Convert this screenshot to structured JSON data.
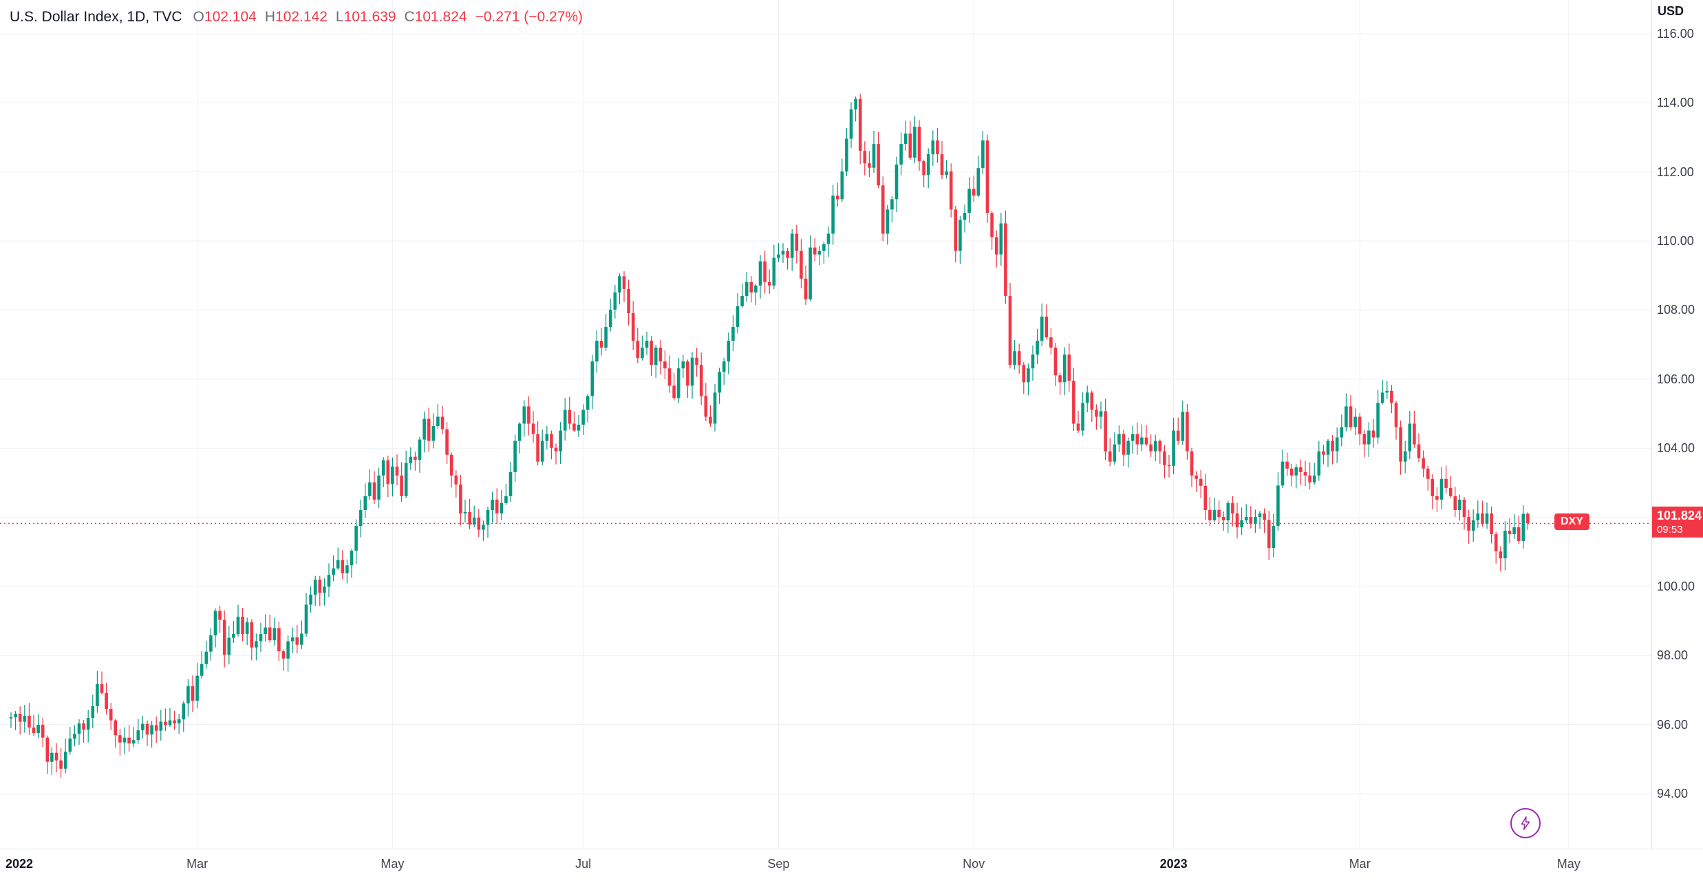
{
  "legend": {
    "title": "U.S. Dollar Index, 1D, TVC",
    "ohlc": [
      {
        "label": "O",
        "value": "102.104"
      },
      {
        "label": "H",
        "value": "102.142"
      },
      {
        "label": "L",
        "value": "101.639"
      },
      {
        "label": "C",
        "value": "101.824"
      }
    ],
    "change": "−0.271 (−0.27%)"
  },
  "price_axis": {
    "currency_label": "USD",
    "ticks": [
      "116.00",
      "114.00",
      "112.00",
      "110.00",
      "108.00",
      "106.00",
      "104.00",
      "102.00",
      "100.00",
      "98.00",
      "96.00",
      "94.00"
    ],
    "price_tag": {
      "price": "101.824",
      "countdown": "09:53"
    }
  },
  "series_tag": {
    "label": "DXY"
  },
  "time_axis": {
    "labels": [
      {
        "index": 0,
        "label": "2022",
        "bold": true,
        "grid": false
      },
      {
        "index": 41,
        "label": "Mar"
      },
      {
        "index": 84,
        "label": "May"
      },
      {
        "index": 126,
        "label": "Jul"
      },
      {
        "index": 169,
        "label": "Sep"
      },
      {
        "index": 212,
        "label": "Nov"
      },
      {
        "index": 256,
        "label": "2023",
        "bold": true
      },
      {
        "index": 297,
        "label": "Mar"
      },
      {
        "index": 343,
        "label": "May"
      }
    ]
  },
  "colors": {
    "up": "#089981",
    "down": "#f23645",
    "grid": "#eef0f4",
    "axis_line": "#e0e3eb",
    "text_primary": "#131722",
    "accent_purple": "#9c27b0"
  },
  "chart_data": {
    "type": "candlestick",
    "title": "U.S. Dollar Index",
    "symbol": "DXY",
    "interval": "1D",
    "exchange": "TVC",
    "ylabel": "USD",
    "ylim": [
      93.3,
      116.4
    ],
    "x_axis_labels": [
      "2022",
      "Mar",
      "May",
      "Jul",
      "Sep",
      "Nov",
      "2023",
      "Mar",
      "May"
    ],
    "grid": true,
    "current_price": 101.824,
    "last_ohlc": {
      "open": 102.104,
      "high": 102.142,
      "low": 101.639,
      "close": 101.824
    },
    "closes": [
      96.21,
      96.31,
      96.08,
      96.25,
      95.91,
      95.75,
      95.99,
      95.62,
      94.92,
      95.18,
      94.96,
      94.72,
      95.21,
      95.59,
      95.73,
      96.03,
      95.85,
      96.19,
      96.53,
      97.17,
      96.91,
      96.45,
      96.12,
      95.69,
      95.48,
      95.62,
      95.45,
      95.55,
      95.83,
      96.02,
      95.71,
      95.98,
      95.82,
      96.08,
      95.98,
      96.12,
      96.03,
      96.15,
      96.61,
      97.11,
      96.69,
      97.41,
      97.75,
      98.11,
      98.58,
      99.29,
      99.03,
      98.01,
      98.51,
      98.62,
      99.12,
      98.62,
      98.96,
      98.23,
      98.41,
      98.62,
      98.81,
      98.44,
      98.79,
      98.12,
      97.91,
      98.41,
      98.52,
      98.31,
      98.63,
      99.47,
      99.76,
      100.19,
      99.81,
      99.99,
      100.33,
      100.52,
      100.76,
      100.38,
      100.61,
      101.03,
      101.75,
      102.21,
      102.61,
      103.01,
      102.51,
      103.21,
      103.65,
      102.96,
      103.47,
      103.21,
      102.61,
      103.57,
      103.75,
      103.66,
      104.25,
      104.85,
      104.21,
      104.64,
      104.91,
      104.55,
      103.81,
      103.21,
      102.95,
      102.11,
      102.15,
      101.79,
      101.99,
      101.64,
      101.78,
      102.21,
      102.51,
      102.11,
      102.41,
      102.61,
      103.31,
      104.21,
      104.71,
      105.21,
      104.71,
      104.41,
      103.61,
      104.21,
      104.41,
      104.01,
      103.91,
      104.51,
      105.11,
      104.71,
      104.51,
      104.68,
      105.11,
      105.51,
      106.51,
      107.11,
      106.91,
      107.51,
      108.01,
      108.51,
      108.98,
      108.61,
      107.91,
      107.11,
      106.61,
      106.91,
      107.11,
      106.41,
      106.91,
      106.51,
      106.31,
      105.81,
      105.45,
      106.31,
      106.51,
      105.81,
      106.62,
      106.41,
      105.51,
      104.91,
      104.71,
      105.61,
      106.21,
      106.51,
      107.11,
      107.51,
      108.11,
      108.41,
      108.81,
      108.51,
      108.71,
      109.41,
      108.81,
      108.71,
      109.51,
      109.61,
      109.71,
      109.51,
      110.21,
      109.71,
      108.91,
      108.31,
      109.81,
      109.61,
      109.71,
      109.91,
      110.21,
      111.31,
      111.21,
      112.01,
      112.96,
      113.81,
      114.11,
      112.61,
      112.25,
      112.12,
      112.81,
      111.61,
      110.21,
      110.91,
      111.21,
      112.21,
      112.81,
      113.11,
      112.41,
      113.31,
      112.31,
      111.91,
      112.51,
      112.91,
      112.51,
      111.91,
      112.01,
      110.91,
      109.71,
      110.61,
      110.81,
      111.51,
      111.31,
      112.11,
      112.91,
      110.81,
      110.11,
      109.61,
      110.51,
      108.41,
      106.41,
      106.81,
      106.41,
      105.91,
      106.31,
      106.71,
      107.11,
      107.81,
      107.21,
      106.91,
      106.11,
      105.91,
      106.71,
      105.95,
      104.71,
      104.51,
      105.31,
      105.61,
      105.11,
      104.91,
      105.07,
      103.91,
      103.61,
      104.11,
      104.41,
      103.81,
      104.21,
      104.41,
      104.11,
      104.31,
      104.11,
      103.91,
      104.21,
      103.91,
      103.51,
      103.49,
      104.51,
      104.21,
      105.05,
      103.91,
      103.21,
      103.11,
      102.91,
      102.21,
      101.91,
      102.21,
      102.01,
      101.91,
      102.41,
      102.11,
      101.71,
      101.91,
      102.01,
      101.81,
      102.01,
      102.11,
      101.92,
      101.11,
      101.75,
      102.92,
      103.61,
      103.41,
      103.21,
      103.45,
      103.31,
      103.21,
      103.01,
      103.21,
      103.91,
      103.81,
      104.21,
      103.91,
      104.31,
      104.61,
      105.21,
      104.61,
      104.91,
      104.41,
      104.11,
      104.51,
      104.31,
      105.31,
      105.61,
      105.66,
      105.31,
      104.61,
      103.61,
      103.91,
      104.71,
      104.11,
      103.71,
      103.41,
      103.11,
      102.61,
      102.51,
      103.11,
      102.85,
      102.61,
      102.21,
      102.51,
      102.01,
      101.61,
      101.91,
      102.11,
      101.81,
      102.11,
      101.51,
      101.01,
      100.81,
      101.61,
      101.51,
      101.71,
      101.31,
      102.1,
      101.82
    ]
  }
}
